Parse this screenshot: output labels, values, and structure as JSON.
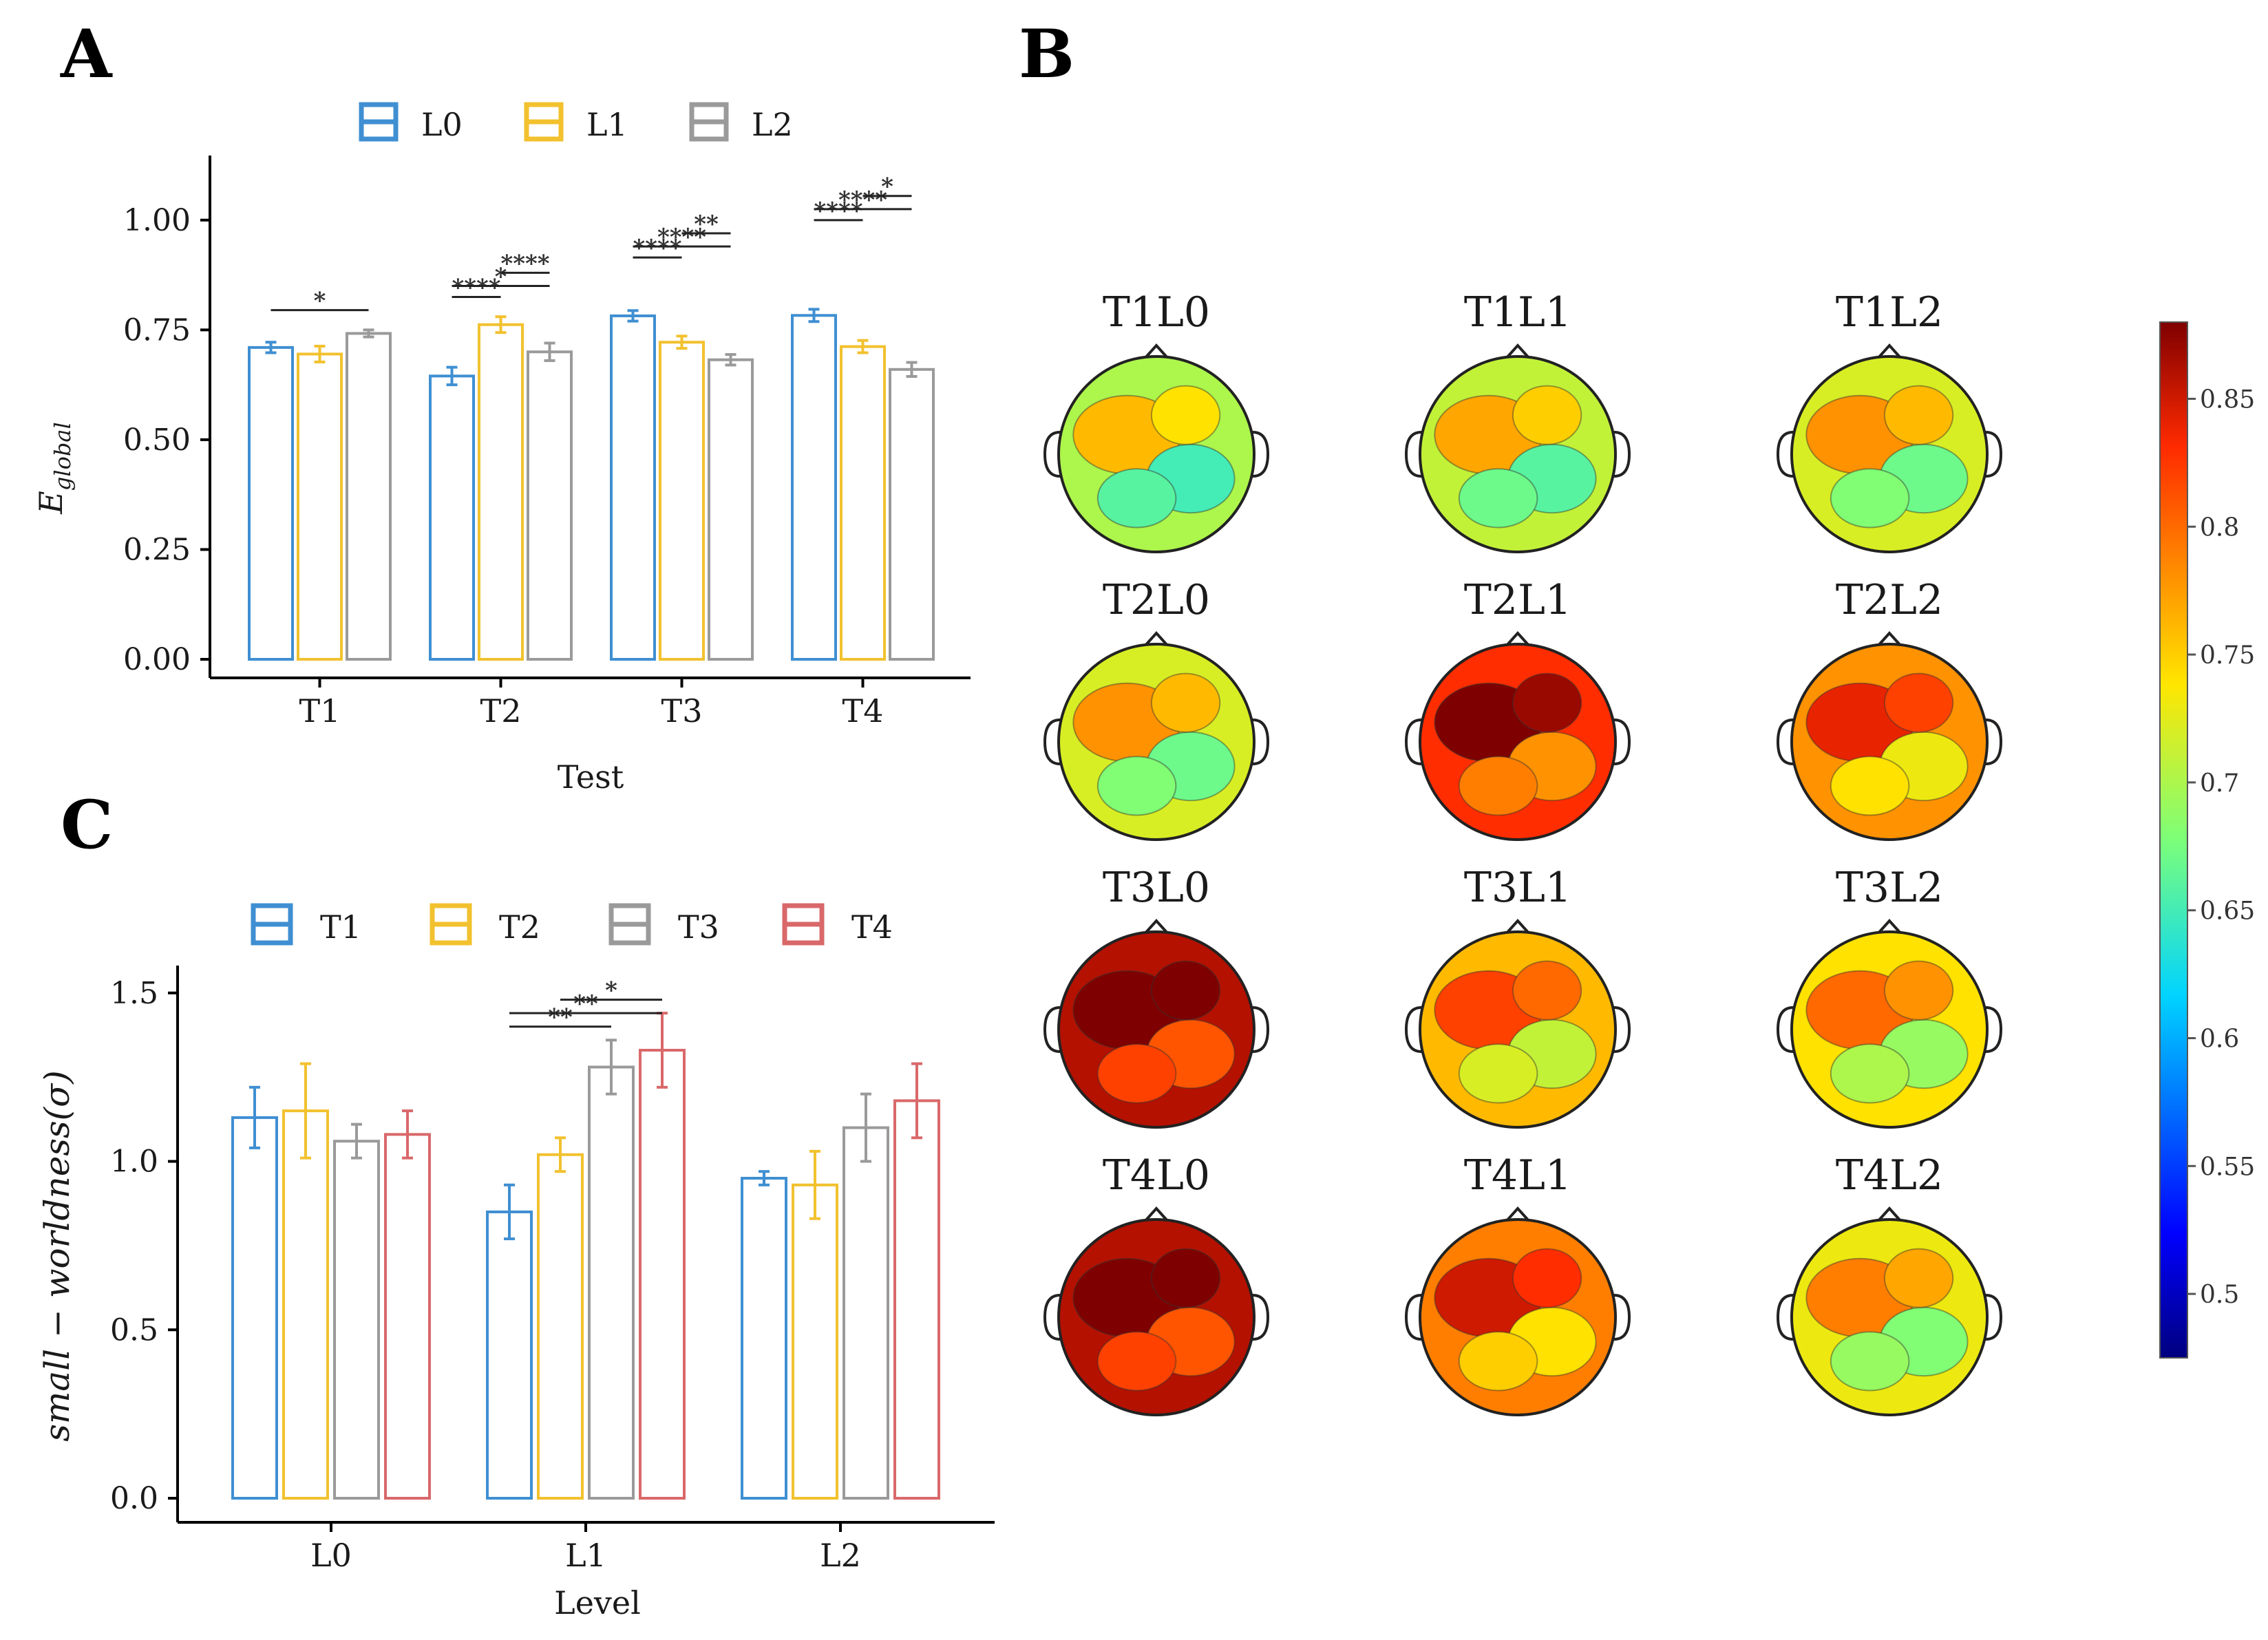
{
  "colors": {
    "blue": "#3F8FD2",
    "yellow": "#F2C12E",
    "gray": "#9A9A9A",
    "red": "#D9686A",
    "axis": "#000000",
    "text": "#1a1a1a"
  },
  "panel_labels": {
    "a": "A",
    "b": "B",
    "c": "C"
  },
  "chart_data": [
    {
      "id": "A",
      "type": "bar",
      "title": "",
      "xlabel": "Test",
      "ylabel": "E",
      "ylabel_sub": "global",
      "ylim": [
        0,
        1.1
      ],
      "yticks": [
        0,
        0.25,
        0.5,
        0.75,
        1.0
      ],
      "ytick_labels": [
        "0.00",
        "0.25",
        "0.50",
        "0.75",
        "1.00"
      ],
      "categories": [
        "T1",
        "T2",
        "T3",
        "T4"
      ],
      "series": [
        {
          "name": "L0",
          "color": "#3F8FD2",
          "values": [
            0.71,
            0.645,
            0.782,
            0.783
          ],
          "err": [
            0.012,
            0.02,
            0.012,
            0.014
          ]
        },
        {
          "name": "L1",
          "color": "#F2C12E",
          "values": [
            0.695,
            0.762,
            0.722,
            0.712
          ],
          "err": [
            0.018,
            0.018,
            0.014,
            0.014
          ]
        },
        {
          "name": "L2",
          "color": "#9A9A9A",
          "values": [
            0.742,
            0.7,
            0.682,
            0.66
          ],
          "err": [
            0.008,
            0.02,
            0.012,
            0.016
          ]
        }
      ],
      "significance": [
        {
          "category": "T1",
          "from": 0,
          "to": 2,
          "y": 0.795,
          "label": "*"
        },
        {
          "category": "T2",
          "from": 0,
          "to": 1,
          "y": 0.825,
          "label": "****"
        },
        {
          "category": "T2",
          "from": 0,
          "to": 2,
          "y": 0.85,
          "label": "*"
        },
        {
          "category": "T2",
          "from": 1,
          "to": 2,
          "y": 0.88,
          "label": "****"
        },
        {
          "category": "T3",
          "from": 0,
          "to": 1,
          "y": 0.915,
          "label": "****"
        },
        {
          "category": "T3",
          "from": 0,
          "to": 2,
          "y": 0.94,
          "label": "****"
        },
        {
          "category": "T3",
          "from": 1,
          "to": 2,
          "y": 0.97,
          "label": "**"
        },
        {
          "category": "T4",
          "from": 0,
          "to": 1,
          "y": 1.0,
          "label": "****"
        },
        {
          "category": "T4",
          "from": 0,
          "to": 2,
          "y": 1.025,
          "label": "****"
        },
        {
          "category": "T4",
          "from": 1,
          "to": 2,
          "y": 1.055,
          "label": "*"
        }
      ]
    },
    {
      "id": "C",
      "type": "bar",
      "title": "",
      "xlabel": "Level",
      "ylabel": "small − worldness(σ)",
      "ylim": [
        0,
        1.52
      ],
      "yticks": [
        0,
        0.5,
        1.0,
        1.5
      ],
      "ytick_labels": [
        "0.0",
        "0.5",
        "1.0",
        "1.5"
      ],
      "categories": [
        "L0",
        "L1",
        "L2"
      ],
      "series": [
        {
          "name": "T1",
          "color": "#3F8FD2",
          "values": [
            1.13,
            0.85,
            0.95
          ],
          "err": [
            0.09,
            0.08,
            0.02
          ]
        },
        {
          "name": "T2",
          "color": "#F2C12E",
          "values": [
            1.15,
            1.02,
            0.93
          ],
          "err": [
            0.14,
            0.05,
            0.1
          ]
        },
        {
          "name": "T3",
          "color": "#9A9A9A",
          "values": [
            1.06,
            1.28,
            1.1
          ],
          "err": [
            0.05,
            0.08,
            0.1
          ]
        },
        {
          "name": "T4",
          "color": "#D9686A",
          "values": [
            1.08,
            1.33,
            1.18
          ],
          "err": [
            0.07,
            0.11,
            0.11
          ]
        }
      ],
      "significance": [
        {
          "category": "L1",
          "from": 0,
          "to": 2,
          "y": 1.4,
          "label": "**"
        },
        {
          "category": "L1",
          "from": 0,
          "to": 3,
          "y": 1.44,
          "label": "**"
        },
        {
          "category": "L1",
          "from": 1,
          "to": 3,
          "y": 1.48,
          "label": "*"
        }
      ]
    },
    {
      "id": "B",
      "type": "heatmap",
      "title": "",
      "maps": [
        {
          "label": "T1L0",
          "level": 0.7
        },
        {
          "label": "T1L1",
          "level": 0.71
        },
        {
          "label": "T1L2",
          "level": 0.72
        },
        {
          "label": "T2L0",
          "level": 0.72
        },
        {
          "label": "T2L1",
          "level": 0.83
        },
        {
          "label": "T2L2",
          "level": 0.78
        },
        {
          "label": "T3L0",
          "level": 0.86
        },
        {
          "label": "T3L1",
          "level": 0.76
        },
        {
          "label": "T3L2",
          "level": 0.74
        },
        {
          "label": "T4L0",
          "level": 0.86
        },
        {
          "label": "T4L1",
          "level": 0.79
        },
        {
          "label": "T4L2",
          "level": 0.73
        }
      ],
      "colorbar": {
        "min": 0.475,
        "max": 0.88,
        "ticks": [
          0.85,
          0.8,
          0.75,
          0.7,
          0.65,
          0.6,
          0.55,
          0.5
        ],
        "tick_labels": [
          "0.85",
          "0.8",
          "0.75",
          "0.7",
          "0.65",
          "0.6",
          "0.55",
          "0.5"
        ]
      }
    }
  ]
}
